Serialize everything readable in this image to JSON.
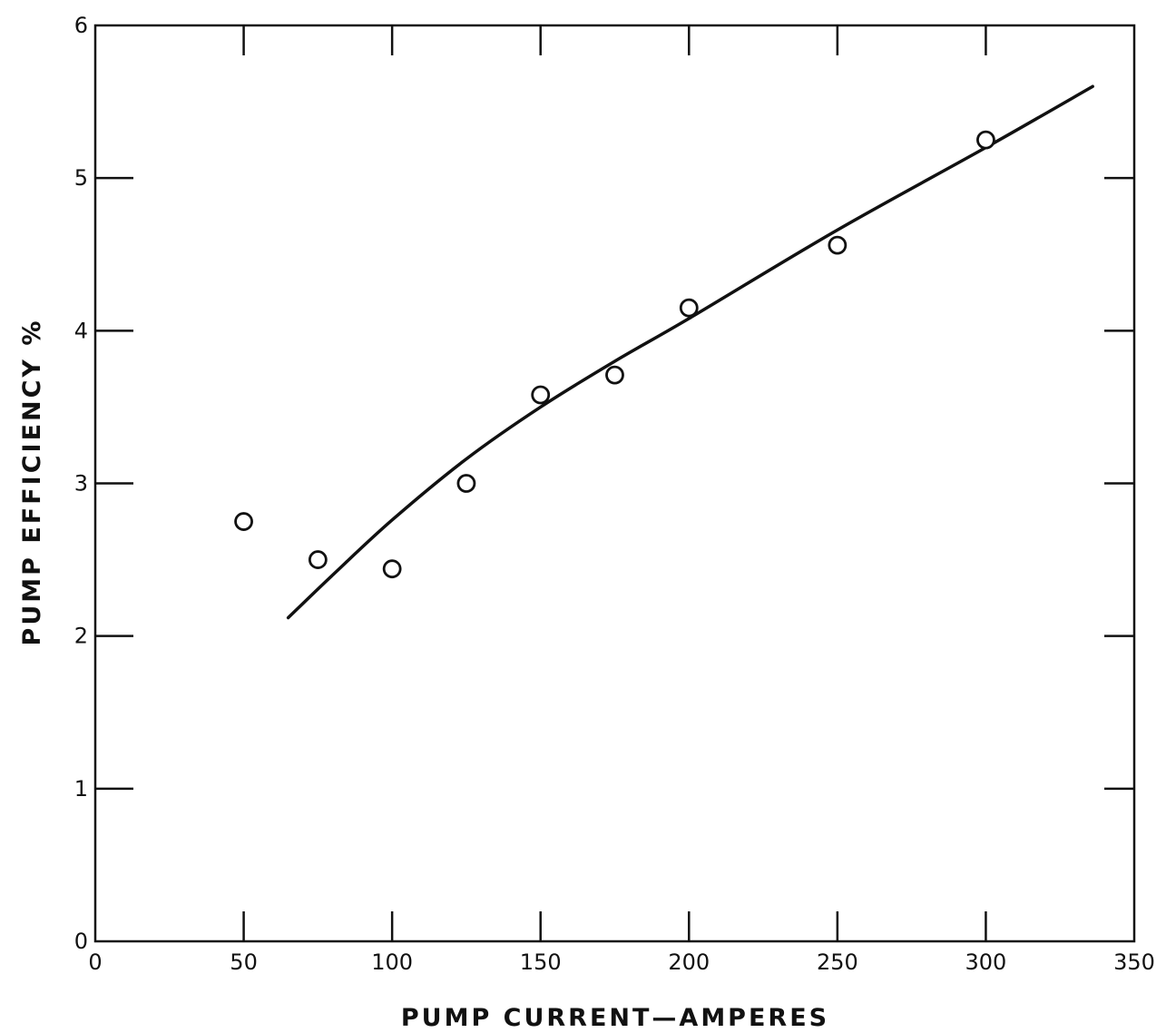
{
  "chart_data": {
    "type": "scatter",
    "title": "",
    "xlabel": "PUMP CURRENT—AMPERES",
    "ylabel": "PUMP EFFICIENCY %",
    "xlim": [
      0,
      350
    ],
    "ylim": [
      0,
      6
    ],
    "xticks": [
      0,
      50,
      100,
      150,
      200,
      250,
      300,
      350
    ],
    "yticks": [
      0,
      1,
      2,
      3,
      4,
      5,
      6
    ],
    "xtick_labels": [
      "0",
      "50",
      "100",
      "150",
      "200",
      "250",
      "300",
      "350"
    ],
    "ytick_labels": [
      "0",
      "1",
      "2",
      "3",
      "4",
      "5",
      "6"
    ],
    "grid": false,
    "colors": {
      "ink": "#111111",
      "background": "#ffffff"
    },
    "series": [
      {
        "type": "scatter",
        "marker": "open-circle",
        "points": [
          {
            "x": 50,
            "y": 2.75
          },
          {
            "x": 75,
            "y": 2.5
          },
          {
            "x": 100,
            "y": 2.44
          },
          {
            "x": 125,
            "y": 3.0
          },
          {
            "x": 150,
            "y": 3.58
          },
          {
            "x": 175,
            "y": 3.71
          },
          {
            "x": 200,
            "y": 4.15
          },
          {
            "x": 250,
            "y": 4.56
          },
          {
            "x": 300,
            "y": 5.25
          }
        ]
      },
      {
        "type": "line",
        "style": "smooth-fit",
        "points": [
          {
            "x": 65,
            "y": 2.12
          },
          {
            "x": 80,
            "y": 2.4
          },
          {
            "x": 100,
            "y": 2.76
          },
          {
            "x": 125,
            "y": 3.16
          },
          {
            "x": 150,
            "y": 3.5
          },
          {
            "x": 175,
            "y": 3.8
          },
          {
            "x": 200,
            "y": 4.08
          },
          {
            "x": 250,
            "y": 4.66
          },
          {
            "x": 300,
            "y": 5.2
          },
          {
            "x": 336,
            "y": 5.6
          }
        ]
      }
    ]
  }
}
